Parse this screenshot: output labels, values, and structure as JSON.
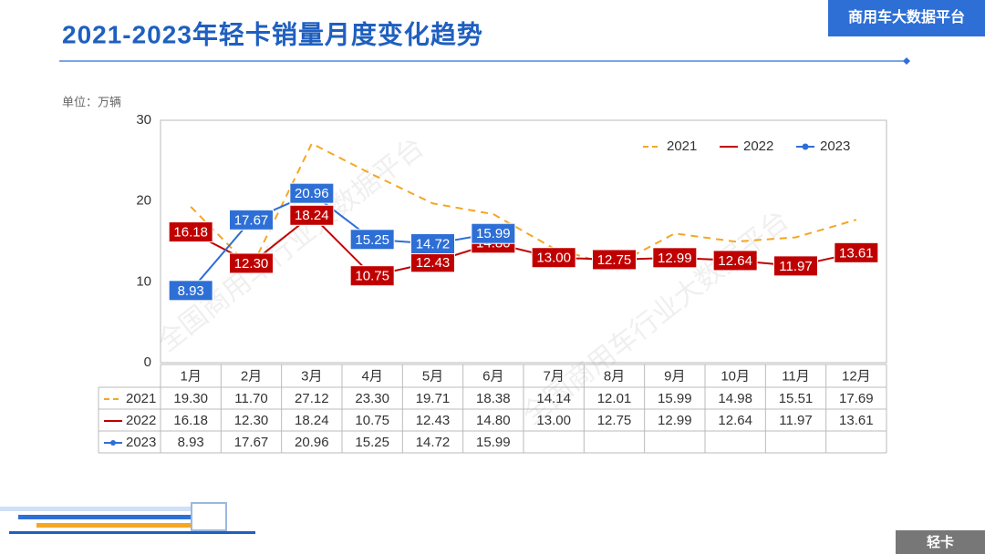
{
  "chart_data": {
    "type": "line",
    "title": "2021-2023年轻卡销量月度变化趋势",
    "brand": "商用车大数据平台",
    "badge": "轻卡",
    "unit": "单位：万辆",
    "watermark": "全国商用车行业大数据平台",
    "categories": [
      "1月",
      "2月",
      "3月",
      "4月",
      "5月",
      "6月",
      "7月",
      "8月",
      "9月",
      "10月",
      "11月",
      "12月"
    ],
    "ylim": [
      0,
      30
    ],
    "yticks": [
      0,
      10,
      20,
      30
    ],
    "grid": false,
    "legend": "top-right",
    "series": [
      {
        "name": "2021",
        "color": "#f5a623",
        "dashed": true,
        "labels_on_chart": false,
        "values": [
          19.3,
          11.7,
          27.12,
          23.3,
          19.71,
          18.38,
          14.14,
          12.01,
          15.99,
          14.98,
          15.51,
          17.69
        ],
        "value_labels": [
          "19.30",
          "11.70",
          "27.12",
          "23.30",
          "19.71",
          "18.38",
          "14.14",
          "12.01",
          "15.99",
          "14.98",
          "15.51",
          "17.69"
        ]
      },
      {
        "name": "2022",
        "color": "#c00000",
        "dashed": false,
        "labels_on_chart": true,
        "values": [
          16.18,
          12.3,
          18.24,
          10.75,
          12.43,
          14.8,
          13,
          12.75,
          12.99,
          12.64,
          11.97,
          13.61
        ],
        "value_labels": [
          "16.18",
          "12.30",
          "18.24",
          "10.75",
          "12.43",
          "14.80",
          "13.00",
          "12.75",
          "12.99",
          "12.64",
          "11.97",
          "13.61"
        ]
      },
      {
        "name": "2023",
        "color": "#2e6fd6",
        "dashed": false,
        "labels_on_chart": true,
        "values": [
          8.93,
          17.67,
          20.96,
          15.25,
          14.72,
          15.99,
          null,
          null,
          null,
          null,
          null,
          null
        ],
        "value_labels": [
          "8.93",
          "17.67",
          "20.96",
          "15.25",
          "14.72",
          "15.99",
          null,
          null,
          null,
          null,
          null,
          null
        ]
      }
    ]
  }
}
